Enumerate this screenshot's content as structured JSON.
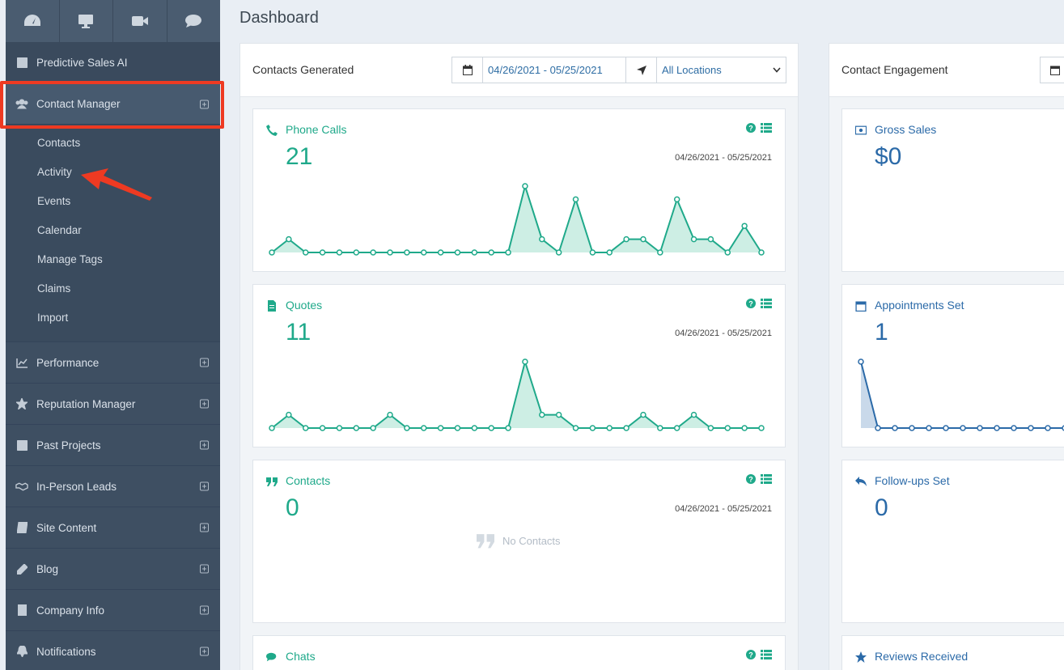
{
  "colors": {
    "sidebar": "#3e4f62",
    "accent_green": "#1fa98a",
    "accent_blue": "#2b6aa8",
    "highlight": "#ee3a22"
  },
  "sidebar": {
    "top_icons": [
      "dashboard-icon",
      "monitor-icon",
      "video-icon",
      "chat-icon"
    ],
    "predictive": "Predictive Sales AI",
    "contact_manager": "Contact Manager",
    "subitems": [
      "Contacts",
      "Activity",
      "Events",
      "Calendar",
      "Manage Tags",
      "Claims",
      "Import"
    ],
    "items": [
      {
        "label": "Performance",
        "icon": "line-chart-icon"
      },
      {
        "label": "Reputation Manager",
        "icon": "star-icon"
      },
      {
        "label": "Past Projects",
        "icon": "checkbox-icon"
      },
      {
        "label": "In-Person Leads",
        "icon": "handshake-icon"
      },
      {
        "label": "Site Content",
        "icon": "book-icon"
      },
      {
        "label": "Blog",
        "icon": "pencil-icon"
      },
      {
        "label": "Company Info",
        "icon": "building-icon"
      },
      {
        "label": "Notifications",
        "icon": "bell-icon"
      }
    ]
  },
  "main": {
    "title": "Dashboard",
    "left_panel": {
      "title": "Contacts Generated",
      "date_range": "04/26/2021 - 05/25/2021",
      "location": "All Locations"
    },
    "right_panel": {
      "title": "Contact Engagement"
    },
    "cards_left": [
      {
        "title": "Phone Calls",
        "value": "21",
        "range": "04/26/2021 - 05/25/2021"
      },
      {
        "title": "Quotes",
        "value": "11",
        "range": "04/26/2021 - 05/25/2021"
      },
      {
        "title": "Contacts",
        "value": "0",
        "range": "04/26/2021 - 05/25/2021",
        "empty": "No Contacts"
      },
      {
        "title": "Chats"
      }
    ],
    "cards_right": [
      {
        "title": "Gross Sales",
        "value": "$0"
      },
      {
        "title": "Appointments Set",
        "value": "1"
      },
      {
        "title": "Follow-ups Set",
        "value": "0"
      },
      {
        "title": "Reviews Received"
      }
    ]
  },
  "chart_data": [
    {
      "type": "area",
      "title": "Phone Calls",
      "values": [
        0,
        1,
        0,
        0,
        0,
        0,
        0,
        0,
        0,
        0,
        0,
        0,
        0,
        0,
        0,
        5,
        1,
        0,
        4,
        0,
        0,
        1,
        1,
        0,
        4,
        1,
        1,
        0,
        2,
        0
      ],
      "ylim": [
        0,
        5
      ]
    },
    {
      "type": "area",
      "title": "Quotes",
      "values": [
        0,
        1,
        0,
        0,
        0,
        0,
        0,
        1,
        0,
        0,
        0,
        0,
        0,
        0,
        0,
        5,
        1,
        1,
        0,
        0,
        0,
        0,
        1,
        0,
        0,
        1,
        0,
        0,
        0,
        0
      ],
      "ylim": [
        0,
        5
      ]
    },
    {
      "type": "area",
      "title": "Appointments Set",
      "values": [
        1,
        0,
        0,
        0,
        0,
        0,
        0,
        0,
        0,
        0,
        0,
        0,
        0
      ],
      "ylim": [
        0,
        1
      ]
    }
  ]
}
